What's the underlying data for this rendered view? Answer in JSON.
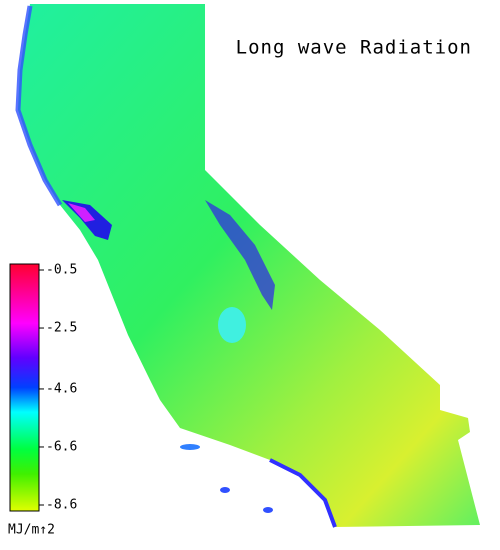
{
  "title": "Long wave Radiation",
  "colorbar": {
    "ticks": [
      -0.5,
      -2.5,
      -4.6,
      -6.6,
      -8.6
    ],
    "label": "MJ/m↑2"
  }
}
